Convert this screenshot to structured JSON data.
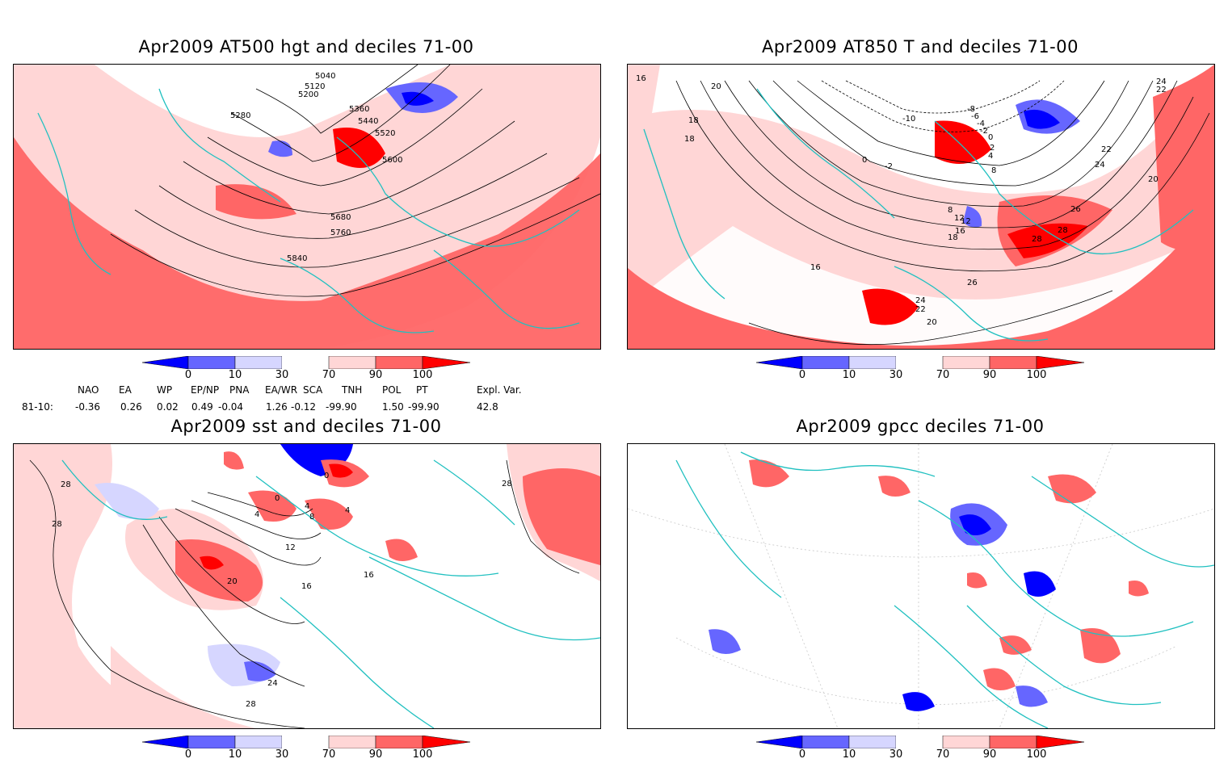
{
  "panels": [
    {
      "id": "p1",
      "title": "Apr2009 AT500 hgt and deciles 71-00",
      "contour_labels": [
        "5040",
        "5120",
        "5200",
        "5280",
        "5360",
        "5440",
        "5520",
        "5600",
        "5680",
        "5760",
        "5840"
      ]
    },
    {
      "id": "p2",
      "title": "Apr2009 AT850 T and deciles 71-00",
      "contour_labels": [
        "16",
        "20",
        "18",
        "18",
        "-10",
        "-8",
        "-6",
        "-4",
        "-2",
        "0",
        "2",
        "4",
        "8",
        "0",
        "-2",
        "22",
        "24",
        "22",
        "24",
        "20",
        "16",
        "8",
        "12",
        "12",
        "16",
        "18",
        "26",
        "28",
        "28",
        "26",
        "24",
        "22",
        "20"
      ]
    },
    {
      "id": "p3",
      "title": "Apr2009 sst and deciles 71-00",
      "contour_labels": [
        "28",
        "28",
        "0",
        "4",
        "4",
        "4",
        "0",
        "8",
        "12",
        "16",
        "16",
        "20",
        "24",
        "28",
        "28"
      ]
    },
    {
      "id": "p4",
      "title": "Apr2009 gpcc deciles 71-00"
    }
  ],
  "colorbar": {
    "labels": [
      "0",
      "10",
      "30",
      "70",
      "90",
      "100"
    ],
    "colors": [
      "#0000ff",
      "#6666ff",
      "#d6d6ff",
      "#ffffff",
      "#ffd6d6",
      "#ff6666",
      "#ff0000"
    ]
  },
  "indices": {
    "headers": [
      "NAO",
      "EA",
      "WP",
      "EP/NP",
      "PNA",
      "EA/WR",
      "SCA",
      "TNH",
      "POL",
      "PT",
      "Expl. Var."
    ],
    "row_label": "81-10:",
    "values": [
      "-0.36",
      "0.26",
      "0.02",
      "0.49",
      "-0.04",
      "1.26",
      "-0.12",
      "-99.90",
      "1.50",
      "-99.90",
      "42.8"
    ]
  },
  "colors": {
    "land_outline": "#20c0c0",
    "blue_strong": "#0000ff",
    "blue_mid": "#6666ff",
    "blue_light": "#d6d6ff",
    "red_light": "#ffd6d6",
    "red_mid": "#ff6666",
    "red_strong": "#ff0000"
  }
}
